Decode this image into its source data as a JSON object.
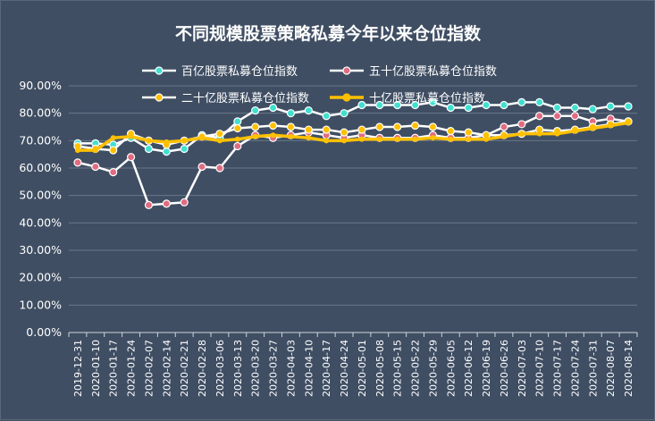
{
  "chart_data": {
    "type": "line",
    "title": "不同规模股票策略私募今年以来仓位指数",
    "xlabel": "",
    "ylabel": "",
    "ylim": [
      0,
      0.9
    ],
    "yticks": [
      "0.00%",
      "10.00%",
      "20.00%",
      "30.00%",
      "40.00%",
      "50.00%",
      "60.00%",
      "70.00%",
      "80.00%",
      "90.00%"
    ],
    "grid": true,
    "legend_position": "top",
    "x": [
      "2019-12-31",
      "2020-01-10",
      "2020-01-17",
      "2020-01-24",
      "2020-02-07",
      "2020-02-14",
      "2020-02-21",
      "2020-02-28",
      "2020-03-06",
      "2020-03-13",
      "2020-03-20",
      "2020-03-27",
      "2020-04-03",
      "2020-04-10",
      "2020-04-17",
      "2020-04-24",
      "2020-05-01",
      "2020-05-08",
      "2020-05-15",
      "2020-05-22",
      "2020-05-29",
      "2020-06-05",
      "2020-06-12",
      "2020-06-19",
      "2020-06-26",
      "2020-07-03",
      "2020-07-10",
      "2020-07-17",
      "2020-07-24",
      "2020-07-31",
      "2020-08-07",
      "2020-08-14"
    ],
    "xticks": [
      "2019-12-31",
      "2020-01-10",
      "2020-01-17",
      "2020-01-24",
      "2020-02-07",
      "2020-02-14",
      "2020-02-21",
      "2020-02-28",
      "2020-03-06",
      "2020-03-13",
      "2020-03-20",
      "2020-03-27",
      "2020-04-03",
      "2020-04-10",
      "2020-04-17",
      "2020-04-24",
      "2020-05-01",
      "2020-05-08",
      "2020-05-15",
      "2020-05-22",
      "2020-05-29",
      "2020-06-05",
      "2020-06-12",
      "2020-06-19",
      "2020-06-26",
      "2020-07-03",
      "2020-07-10",
      "2020-07-17",
      "2020-07-24",
      "2020-07-31",
      "2020-08-07",
      "2020-08-14"
    ],
    "series": [
      {
        "name": "百亿股票私募仓位指数",
        "color": "#40e0d0",
        "line_color": "#ffffff",
        "values": [
          0.69,
          0.69,
          0.685,
          0.71,
          0.67,
          0.66,
          0.67,
          0.72,
          0.71,
          0.77,
          0.81,
          0.82,
          0.8,
          0.81,
          0.79,
          0.8,
          0.83,
          0.83,
          0.83,
          0.83,
          0.84,
          0.82,
          0.82,
          0.83,
          0.83,
          0.84,
          0.84,
          0.82,
          0.82,
          0.815,
          0.825,
          0.825
        ]
      },
      {
        "name": "五十亿股票私募仓位指数",
        "color": "#e06c82",
        "line_color": "#ffffff",
        "values": [
          0.62,
          0.605,
          0.585,
          0.64,
          0.465,
          0.47,
          0.475,
          0.605,
          0.6,
          0.68,
          0.72,
          0.71,
          0.72,
          0.73,
          0.72,
          0.71,
          0.72,
          0.71,
          0.71,
          0.71,
          0.72,
          0.71,
          0.71,
          0.72,
          0.75,
          0.76,
          0.79,
          0.79,
          0.79,
          0.77,
          0.78,
          0.77
        ]
      },
      {
        "name": "二十亿股票私募仓位指数",
        "color": "#ffc000",
        "line_color": "#ffffff",
        "values": [
          0.68,
          0.67,
          0.665,
          0.725,
          0.7,
          0.685,
          0.7,
          0.715,
          0.725,
          0.745,
          0.75,
          0.755,
          0.75,
          0.74,
          0.74,
          0.73,
          0.74,
          0.75,
          0.75,
          0.755,
          0.75,
          0.735,
          0.73,
          0.72,
          0.72,
          0.725,
          0.74,
          0.735,
          0.74,
          0.75,
          0.76,
          0.77
        ]
      },
      {
        "name": "十亿股票私募仓位指数",
        "color": "#ffc000",
        "line_color": "#ffc000",
        "values": [
          0.665,
          0.665,
          0.71,
          0.715,
          0.7,
          0.695,
          0.7,
          0.71,
          0.7,
          0.705,
          0.715,
          0.72,
          0.715,
          0.71,
          0.7,
          0.7,
          0.705,
          0.705,
          0.705,
          0.705,
          0.71,
          0.705,
          0.705,
          0.705,
          0.715,
          0.725,
          0.725,
          0.725,
          0.735,
          0.745,
          0.755,
          0.765
        ]
      }
    ]
  }
}
